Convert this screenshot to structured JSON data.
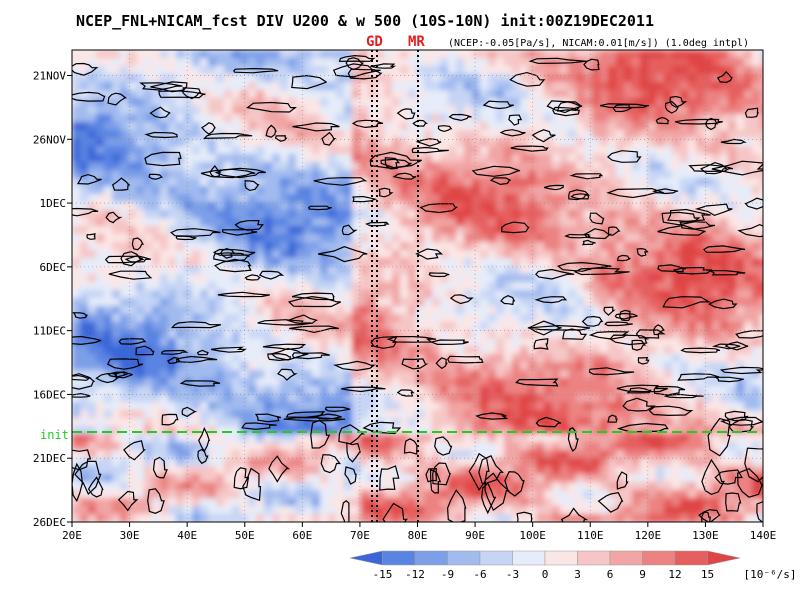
{
  "title": "NCEP_FNL+NICAM_fcst DIV U200 & w 500 (10S-10N) init:00Z19DEC2011",
  "subtitle": "(NCEP:-0.05[Pa/s], NICAM:0.01[m/s]) (1.0deg intpl)",
  "markers": {
    "gd": "GD",
    "mr": "MR"
  },
  "init_label": "init",
  "colors": {
    "negative_strong": "#3b66d8",
    "negative_weak": "#d6e0f8",
    "near_zero": "#f7eef0",
    "positive_weak": "#f7c8c8",
    "positive_strong": "#e85050",
    "init_line": "#22cc22",
    "marker_text": "#e02020",
    "contour": "#000000"
  },
  "chart_data": {
    "type": "heatmap",
    "title": "NCEP_FNL+NICAM_fcst DIV U200 & w 500 (10S-10N)",
    "x_axis": {
      "ticks": [
        "20E",
        "30E",
        "40E",
        "50E",
        "60E",
        "70E",
        "80E",
        "90E",
        "100E",
        "110E",
        "120E",
        "130E",
        "140E"
      ],
      "range": [
        20,
        140
      ]
    },
    "y_axis": {
      "ticks": [
        "21NOV",
        "26NOV",
        "1DEC",
        "6DEC",
        "11DEC",
        "16DEC",
        "21DEC",
        "26DEC"
      ],
      "range": [
        "19NOV2011",
        "26DEC2011"
      ]
    },
    "init_date": "19DEC2011",
    "markers": [
      {
        "label": "GD",
        "lon_start": 72.5,
        "lon_end": 73.5
      },
      {
        "label": "MR",
        "lon": 80
      }
    ],
    "colorbar": {
      "ticks": [
        "-15",
        "-12",
        "-9",
        "-6",
        "-3",
        "0",
        "3",
        "6",
        "9",
        "12",
        "15"
      ],
      "unit": "[10⁻⁶/s]",
      "colors": [
        "#3b66d8",
        "#5a84e2",
        "#7d9fe8",
        "#a2bbef",
        "#c6d5f5",
        "#e6ecf9",
        "#fbe6e6",
        "#f6c6c6",
        "#f1a5a5",
        "#ec8282",
        "#e65f5f",
        "#e04545"
      ]
    },
    "field_bands": [
      {
        "lon": [
          20,
          68
        ],
        "time": [
          "19NOV2011",
          "18DEC2011"
        ],
        "sign": "negative",
        "note": "predominantly blue"
      },
      {
        "lon": [
          72,
          140
        ],
        "time": [
          "19NOV2011",
          "16DEC2011"
        ],
        "sign": "positive",
        "note": "predominantly red"
      },
      {
        "lon": [
          70,
          140
        ],
        "time": [
          "19DEC2011",
          "26DEC2011"
        ],
        "sign": "positive",
        "note": "forecast period red"
      }
    ]
  }
}
